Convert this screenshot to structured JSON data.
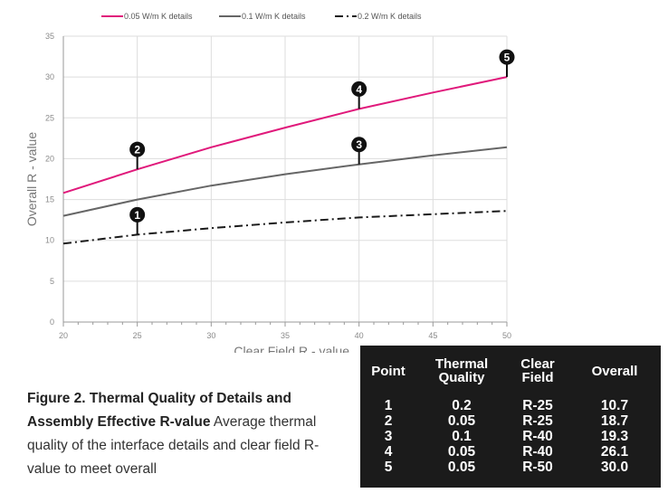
{
  "chart_data": {
    "type": "line",
    "xlabel": "Clear Field R - value",
    "ylabel": "Overall R - value",
    "xlim": [
      20,
      50
    ],
    "ylim": [
      0,
      35
    ],
    "x_ticks": [
      20,
      25,
      30,
      35,
      40,
      45,
      50
    ],
    "y_ticks": [
      0,
      5,
      10,
      15,
      20,
      25,
      30,
      35
    ],
    "grid": true,
    "legend_position": "top",
    "series": [
      {
        "name": "0.05 W/m K details",
        "color": "#e0197b",
        "dash": "solid",
        "x": [
          20,
          25,
          30,
          35,
          40,
          45,
          50
        ],
        "y": [
          15.8,
          18.7,
          21.4,
          23.8,
          26.1,
          28.1,
          30.0
        ]
      },
      {
        "name": "0.1 W/m K details",
        "color": "#666666",
        "dash": "solid",
        "x": [
          20,
          25,
          30,
          35,
          40,
          45,
          50
        ],
        "y": [
          13.0,
          15.0,
          16.7,
          18.1,
          19.3,
          20.4,
          21.4
        ]
      },
      {
        "name": "0.2 W/m K details",
        "color": "#1a1a1a",
        "dash": "dashdot",
        "x": [
          20,
          25,
          30,
          35,
          40,
          45,
          50
        ],
        "y": [
          9.6,
          10.7,
          11.5,
          12.2,
          12.8,
          13.2,
          13.6
        ]
      }
    ],
    "annotations": [
      {
        "label": "1",
        "x": 25,
        "y": 10.7
      },
      {
        "label": "2",
        "x": 25,
        "y": 18.7
      },
      {
        "label": "3",
        "x": 40,
        "y": 19.3
      },
      {
        "label": "4",
        "x": 40,
        "y": 26.1
      },
      {
        "label": "5",
        "x": 50,
        "y": 30.0
      }
    ]
  },
  "caption": {
    "title": "Figure 2. Thermal Quality of Details and Assembly Effective R-value",
    "body": " Average thermal quality of the interface details and clear field R-value to meet overall"
  },
  "table": {
    "headers": {
      "point": "Point",
      "thermal_quality": "Thermal Quality",
      "clear_field": "Clear Field",
      "overall": "Overall"
    },
    "rows": [
      {
        "point": "1",
        "thermal_quality": "0.2",
        "clear_field": "R-25",
        "overall": "10.7"
      },
      {
        "point": "2",
        "thermal_quality": "0.05",
        "clear_field": "R-25",
        "overall": "18.7"
      },
      {
        "point": "3",
        "thermal_quality": "0.1",
        "clear_field": "R-40",
        "overall": "19.3"
      },
      {
        "point": "4",
        "thermal_quality": "0.05",
        "clear_field": "R-40",
        "overall": "26.1"
      },
      {
        "point": "5",
        "thermal_quality": "0.05",
        "clear_field": "R-50",
        "overall": "30.0"
      }
    ]
  }
}
